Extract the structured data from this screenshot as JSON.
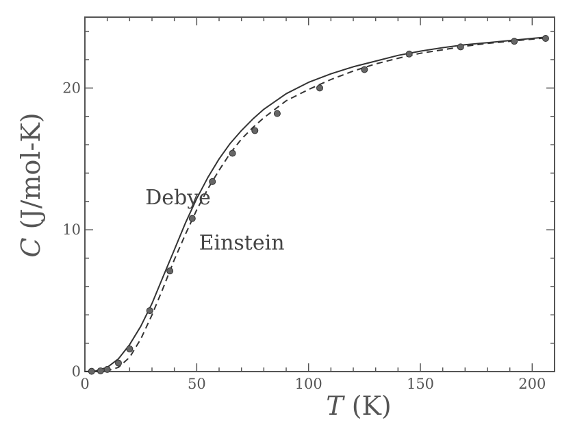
{
  "chart_data": {
    "type": "line",
    "title": "",
    "xlabel": {
      "var": "T",
      "unit": " (K)"
    },
    "ylabel": {
      "var": "C",
      "unit": " (J/mol-K)"
    },
    "xlim": [
      0,
      210
    ],
    "ylim": [
      0,
      25
    ],
    "xticks": [
      0,
      50,
      100,
      150,
      200
    ],
    "yticks": [
      0,
      10,
      20
    ],
    "grid": false,
    "legend": "none",
    "series": [
      {
        "kind": "experimental-points",
        "x": [
          3,
          7,
          10,
          15,
          20,
          29,
          38,
          48,
          57,
          66,
          76,
          86,
          105,
          125,
          145,
          168,
          192,
          206
        ],
        "y": [
          0.02,
          0.05,
          0.15,
          0.6,
          1.6,
          4.3,
          7.1,
          10.8,
          13.4,
          15.4,
          17.0,
          18.2,
          20.0,
          21.3,
          22.4,
          22.9,
          23.3,
          23.5
        ]
      },
      {
        "kind": "fit-line-solid",
        "annotation": "Debye",
        "x": [
          0,
          5,
          10,
          15,
          20,
          25,
          30,
          35,
          40,
          45,
          50,
          55,
          60,
          65,
          70,
          75,
          80,
          90,
          100,
          110,
          120,
          130,
          140,
          150,
          160,
          170,
          180,
          190,
          200,
          207
        ],
        "y": [
          0,
          0.05,
          0.3,
          0.9,
          1.9,
          3.2,
          4.8,
          6.7,
          8.6,
          10.5,
          12.2,
          13.7,
          15.0,
          16.1,
          17.0,
          17.8,
          18.5,
          19.6,
          20.4,
          21.0,
          21.5,
          21.9,
          22.3,
          22.6,
          22.85,
          23.05,
          23.2,
          23.35,
          23.5,
          23.6
        ]
      },
      {
        "kind": "fit-line-dashed",
        "annotation": "Einstein",
        "x": [
          0,
          5,
          10,
          15,
          20,
          25,
          30,
          35,
          40,
          45,
          50,
          55,
          60,
          65,
          70,
          75,
          80,
          90,
          100,
          110,
          120,
          130,
          140,
          150,
          160,
          170,
          180,
          190,
          200,
          207
        ],
        "y": [
          0,
          0,
          0.05,
          0.3,
          1.0,
          2.3,
          4.0,
          5.9,
          7.9,
          9.7,
          11.4,
          12.9,
          14.2,
          15.4,
          16.4,
          17.2,
          17.9,
          19.1,
          19.9,
          20.6,
          21.2,
          21.7,
          22.1,
          22.45,
          22.7,
          22.95,
          23.15,
          23.3,
          23.45,
          23.55
        ]
      }
    ],
    "annotations": [
      {
        "text": "Debye",
        "x": 27,
        "y": 11.8
      },
      {
        "text": "Einstein",
        "x": 51,
        "y": 8.6
      }
    ]
  }
}
